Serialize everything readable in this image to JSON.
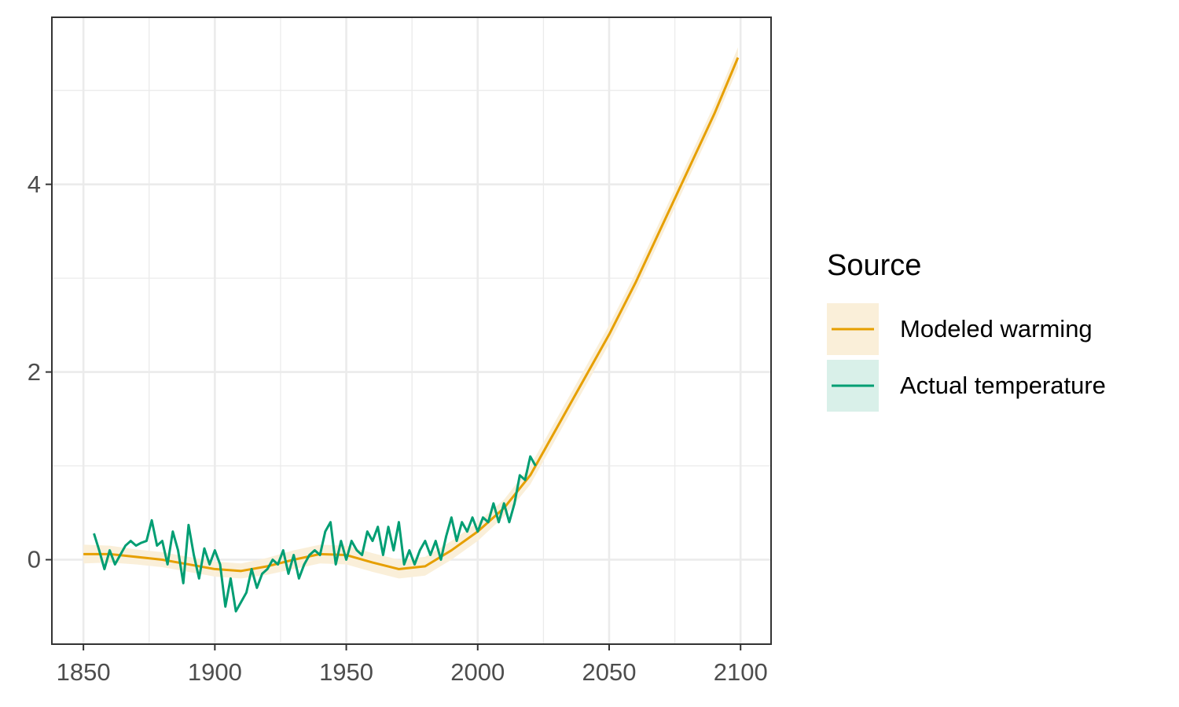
{
  "chart_data": {
    "type": "line",
    "xlim": [
      1838,
      2111.6
    ],
    "ylim": [
      -0.9,
      5.78
    ],
    "xticks": [
      1850,
      1900,
      1950,
      2000,
      2050,
      2100
    ],
    "yticks": [
      0,
      2,
      4
    ],
    "x_minor_ticks": [
      1875,
      1925,
      1975,
      2025,
      2075
    ],
    "y_minor_ticks": [
      1,
      3,
      5
    ],
    "grid": true,
    "legend_title": "Source",
    "legend_position": "right",
    "series": [
      {
        "name": "Modeled warming",
        "color": "#E69F00",
        "ribbon_color": "#FAEFD9",
        "x": [
          1850,
          1860,
          1870,
          1880,
          1890,
          1900,
          1910,
          1920,
          1930,
          1940,
          1950,
          1960,
          1970,
          1980,
          1990,
          2000,
          2010,
          2020,
          2030,
          2040,
          2050,
          2060,
          2070,
          2080,
          2090,
          2099
        ],
        "values": [
          0.06,
          0.06,
          0.03,
          0.0,
          -0.05,
          -0.1,
          -0.12,
          -0.07,
          0.0,
          0.06,
          0.05,
          -0.03,
          -0.1,
          -0.07,
          0.1,
          0.3,
          0.55,
          0.9,
          1.4,
          1.9,
          2.4,
          2.95,
          3.55,
          4.15,
          4.75,
          5.35
        ],
        "lower": [
          -0.04,
          -0.03,
          -0.05,
          -0.08,
          -0.13,
          -0.18,
          -0.2,
          -0.16,
          -0.1,
          -0.04,
          -0.05,
          -0.13,
          -0.2,
          -0.17,
          0.0,
          0.2,
          0.46,
          0.8,
          1.3,
          1.8,
          2.3,
          2.85,
          3.45,
          4.05,
          4.65,
          5.24
        ],
        "upper": [
          0.16,
          0.15,
          0.11,
          0.08,
          0.03,
          -0.02,
          -0.04,
          0.02,
          0.1,
          0.16,
          0.15,
          0.07,
          0.0,
          0.03,
          0.2,
          0.4,
          0.64,
          1.0,
          1.5,
          2.0,
          2.5,
          3.05,
          3.65,
          4.25,
          4.85,
          5.46
        ]
      },
      {
        "name": "Actual temperature",
        "color": "#009E73",
        "ribbon_color": "#D9F0E9",
        "x": [
          1854,
          1856,
          1858,
          1860,
          1862,
          1864,
          1866,
          1868,
          1870,
          1872,
          1874,
          1876,
          1878,
          1880,
          1882,
          1884,
          1886,
          1888,
          1890,
          1892,
          1894,
          1896,
          1898,
          1900,
          1902,
          1904,
          1906,
          1908,
          1910,
          1912,
          1914,
          1916,
          1918,
          1920,
          1922,
          1924,
          1926,
          1928,
          1930,
          1932,
          1934,
          1936,
          1938,
          1940,
          1942,
          1944,
          1946,
          1948,
          1950,
          1952,
          1954,
          1956,
          1958,
          1960,
          1962,
          1964,
          1966,
          1968,
          1970,
          1972,
          1974,
          1976,
          1978,
          1980,
          1982,
          1984,
          1986,
          1988,
          1990,
          1992,
          1994,
          1996,
          1998,
          2000,
          2002,
          2004,
          2006,
          2008,
          2010,
          2012,
          2014,
          2016,
          2018,
          2020,
          2022
        ],
        "values": [
          0.28,
          0.1,
          -0.1,
          0.1,
          -0.05,
          0.05,
          0.15,
          0.2,
          0.15,
          0.18,
          0.2,
          0.42,
          0.15,
          0.2,
          -0.05,
          0.3,
          0.1,
          -0.25,
          0.37,
          0.05,
          -0.2,
          0.12,
          -0.05,
          0.1,
          -0.05,
          -0.5,
          -0.2,
          -0.55,
          -0.45,
          -0.35,
          -0.1,
          -0.3,
          -0.15,
          -0.1,
          0.0,
          -0.05,
          0.1,
          -0.15,
          0.05,
          -0.2,
          -0.05,
          0.05,
          0.1,
          0.05,
          0.3,
          0.4,
          -0.05,
          0.2,
          0.0,
          0.2,
          0.1,
          0.05,
          0.3,
          0.2,
          0.35,
          0.05,
          0.35,
          0.1,
          0.4,
          -0.05,
          0.1,
          -0.05,
          0.1,
          0.2,
          0.05,
          0.2,
          0.0,
          0.25,
          0.45,
          0.2,
          0.4,
          0.3,
          0.45,
          0.3,
          0.45,
          0.4,
          0.6,
          0.4,
          0.6,
          0.4,
          0.6,
          0.9,
          0.85,
          1.1,
          1.0
        ]
      }
    ]
  }
}
